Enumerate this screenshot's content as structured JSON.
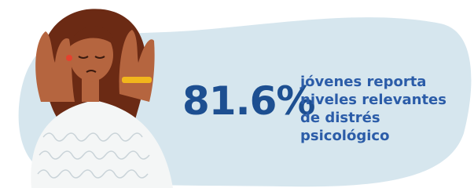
{
  "stat": "81.6%",
  "description": [
    "jóvenes reporta",
    "niveles relevantes",
    "de distrés",
    "psicológico"
  ]
}
